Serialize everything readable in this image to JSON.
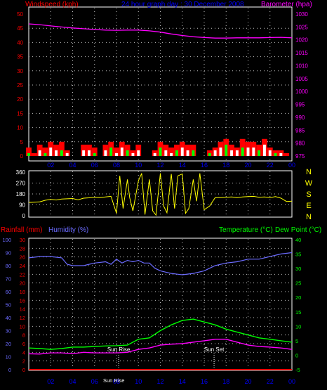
{
  "colors": {
    "background": "#000000",
    "frame": "#ffffff",
    "grid": "#bfbfbf",
    "wind_axis": "#ff0000",
    "gust": "#ff0000",
    "wind": "#ffffff",
    "avg_wind": "#00ff00",
    "barometer": "#ff00ff",
    "title": "#0000ff",
    "direction": "#ffff00",
    "compass": "#ffff00",
    "rain": "#ff0000",
    "humidity": "#6b6bff",
    "temperature": "#00ff00",
    "dewpoint": "#ff00ff",
    "dew_label": "#00ff00",
    "hour_labels": "#0000ff",
    "marker_text": "#ffffff"
  },
  "chart_data": [
    {
      "type": "area",
      "title": "24 hour graph day : 30 December 2008",
      "ylabel_left": "Windspeed (kph)",
      "ylabel_right": "Barometer (hpa)",
      "x_ticks": [
        "02",
        "04",
        "06",
        "08",
        "10",
        "12",
        "14",
        "16",
        "18",
        "20",
        "22",
        "00"
      ],
      "y_left_ticks": [
        "0",
        "5",
        "10",
        "15",
        "20",
        "25",
        "30",
        "35",
        "40",
        "45",
        "50"
      ],
      "y_left_range": [
        0,
        50
      ],
      "y_right_ticks": [
        "975",
        "980",
        "985",
        "990",
        "995",
        "1000",
        "1005",
        "1010",
        "1015",
        "1020",
        "1025",
        "1030"
      ],
      "y_right_range": [
        975,
        1030
      ],
      "grid": true,
      "series": [
        {
          "name": "Barometer (hpa)",
          "x": [
            0,
            1,
            2,
            3,
            4,
            5,
            6,
            7,
            8,
            9,
            10,
            11,
            12,
            13,
            14,
            15,
            16,
            17,
            18,
            19,
            20,
            21,
            22,
            23,
            24
          ],
          "values": [
            1026.2,
            1025.9,
            1025.4,
            1025.0,
            1024.6,
            1024.3,
            1024.0,
            1023.8,
            1023.7,
            1023.8,
            1023.8,
            1023.5,
            1023.0,
            1022.3,
            1021.7,
            1021.2,
            1020.9,
            1020.7,
            1020.7,
            1020.8,
            1020.8,
            1020.8,
            1020.9,
            1021.0,
            1020.8
          ]
        }
      ],
      "gust_series": {
        "x": [
          0,
          0.5,
          1,
          1.5,
          2,
          2.5,
          3,
          3.5,
          4,
          4.5,
          5,
          5.5,
          6,
          6.5,
          7,
          7.5,
          8,
          8.5,
          9,
          9.5,
          10,
          10.5,
          11,
          11.5,
          12,
          12.5,
          13,
          13.5,
          14,
          14.5,
          15,
          15.5,
          16,
          16.5,
          17,
          17.5,
          18,
          18.5,
          19,
          19.5,
          20,
          20.5,
          21,
          21.5,
          22,
          22.5,
          23,
          23.5,
          24
        ],
        "values": [
          3,
          1,
          4,
          3,
          5,
          4,
          5,
          2,
          0,
          0,
          4,
          4,
          3,
          0,
          4,
          5,
          3,
          5,
          4,
          2,
          4,
          0,
          0,
          2,
          5,
          4,
          3,
          4,
          5,
          4,
          4,
          0,
          0,
          2,
          3,
          5,
          6,
          4,
          3,
          6,
          5,
          5,
          4,
          6,
          3,
          2,
          2,
          1,
          0
        ]
      },
      "wind_series": {
        "x": [
          0,
          0.5,
          1,
          1.5,
          2,
          2.5,
          3,
          3.5,
          4,
          4.5,
          5,
          5.5,
          6,
          6.5,
          7,
          7.5,
          8,
          8.5,
          9,
          9.5,
          10,
          10.5,
          11,
          11.5,
          12,
          12.5,
          13,
          13.5,
          14,
          14.5,
          15,
          15.5,
          16,
          16.5,
          17,
          17.5,
          18,
          18.5,
          19,
          19.5,
          20,
          20.5,
          21,
          21.5,
          22,
          22.5,
          23,
          23.5,
          24
        ],
        "values": [
          1,
          0,
          2,
          1,
          3,
          2,
          2,
          1,
          0,
          0,
          2,
          2,
          1,
          0,
          2,
          3,
          1,
          3,
          2,
          1,
          2,
          0,
          0,
          1,
          3,
          2,
          1,
          2,
          3,
          2,
          2,
          0,
          0,
          1,
          2,
          3,
          4,
          2,
          2,
          3,
          3,
          3,
          2,
          4,
          2,
          1,
          1,
          0,
          0
        ]
      }
    },
    {
      "type": "line",
      "ylabel_right": "N W S E N",
      "compass": [
        "N",
        "W",
        "S",
        "E",
        "N"
      ],
      "y_ticks": [
        "0",
        "90",
        "180",
        "270",
        "360"
      ],
      "y_range": [
        0,
        360
      ],
      "grid": true,
      "series": [
        {
          "name": "Wind direction",
          "x": [
            0,
            0.5,
            1,
            1.5,
            2,
            2.5,
            3,
            3.5,
            4,
            4.5,
            5,
            5.5,
            6,
            6.5,
            7,
            7.5,
            8,
            8.3,
            8.6,
            9,
            9.2,
            9.5,
            10,
            10.3,
            10.6,
            11,
            11.3,
            11.6,
            12,
            12.3,
            12.6,
            13,
            13.3,
            13.6,
            14,
            14.3,
            14.6,
            15,
            15.3,
            15.6,
            16,
            16.5,
            17,
            17.5,
            18,
            18.5,
            19,
            19.5,
            20,
            20.5,
            21,
            21.5,
            22,
            22.5,
            23,
            23.5,
            24
          ],
          "values": [
            110,
            112,
            115,
            128,
            135,
            130,
            138,
            140,
            142,
            132,
            145,
            148,
            152,
            150,
            155,
            160,
            20,
            330,
            60,
            300,
            150,
            40,
            290,
            350,
            10,
            300,
            40,
            5,
            350,
            80,
            25,
            345,
            60,
            330,
            345,
            20,
            60,
            300,
            120,
            350,
            50,
            80,
            150,
            150,
            152,
            155,
            150,
            155,
            158,
            160,
            152,
            155,
            150,
            158,
            145,
            118,
            120
          ]
        }
      ]
    },
    {
      "type": "line",
      "ylabel_left_1": "Rainfall (mm)",
      "ylabel_left_2": "Humidity (%)",
      "ylabel_right_1": "Temperature (°C)",
      "ylabel_right_2": "Dew Point (°C)",
      "x_ticks": [
        "02",
        "04",
        "06",
        "08",
        "10",
        "12",
        "14",
        "16",
        "18",
        "20",
        "22",
        "00"
      ],
      "humidity_ticks": [
        "0",
        "10",
        "20",
        "30",
        "40",
        "50",
        "60",
        "70",
        "80",
        "90",
        "100"
      ],
      "humidity_range": [
        0,
        100
      ],
      "rain_ticks": [
        "0",
        "2",
        "4",
        "6",
        "8",
        "10",
        "12",
        "14",
        "16",
        "18",
        "20",
        "22",
        "24",
        "26",
        "28",
        "30"
      ],
      "rain_range": [
        0,
        30
      ],
      "temp_ticks": [
        "-5",
        "0",
        "5",
        "10",
        "15",
        "20",
        "25",
        "30",
        "35",
        "40"
      ],
      "temp_range": [
        -5,
        40
      ],
      "grid": true,
      "markers": [
        {
          "label": "Sun Rise",
          "x": 8.2
        },
        {
          "label": "Sun Set",
          "x": 16.9
        }
      ],
      "bottom_label": "Sun Rise",
      "series": [
        {
          "name": "Humidity (%)",
          "x": [
            0,
            1,
            2,
            3,
            3.5,
            4,
            5,
            6,
            7,
            7.5,
            8,
            8.5,
            9,
            9.5,
            10,
            10.5,
            11,
            11.5,
            12,
            12.5,
            13,
            14,
            15,
            16,
            16.5,
            17,
            18,
            19,
            20,
            21,
            22,
            23,
            24
          ],
          "values": [
            86,
            87,
            87,
            86,
            81,
            80,
            80,
            82,
            83,
            81,
            85,
            82,
            84,
            83,
            84,
            82,
            82,
            78,
            76,
            75,
            74,
            73,
            74,
            76,
            78,
            80,
            82,
            83,
            85,
            85,
            87,
            89,
            90
          ]
        },
        {
          "name": "Temperature (°C)",
          "x": [
            0,
            1,
            2,
            3,
            4,
            5,
            6,
            7,
            8,
            9,
            10,
            11,
            12,
            13,
            14,
            15,
            16,
            17,
            18,
            19,
            20,
            21,
            22,
            23,
            24
          ],
          "values": [
            2.5,
            2.3,
            2.0,
            2.3,
            2.8,
            2.8,
            3.0,
            3.2,
            3.3,
            3.5,
            5.5,
            6.0,
            8.5,
            10.5,
            12.0,
            12.5,
            11.5,
            10.5,
            9.0,
            8.0,
            7.0,
            6.0,
            5.5,
            5.0,
            4.5
          ]
        },
        {
          "name": "Dew Point (°C)",
          "x": [
            0,
            1,
            2,
            3,
            4,
            5,
            6,
            7,
            8,
            9,
            10,
            11,
            12,
            13,
            14,
            15,
            16,
            17,
            18,
            19,
            20,
            21,
            22,
            23,
            24
          ],
          "values": [
            0.5,
            0.4,
            0.8,
            0.8,
            0.5,
            1.0,
            0.8,
            0.8,
            0.8,
            1.0,
            2.0,
            2.5,
            3.5,
            3.8,
            4.0,
            4.5,
            5.0,
            5.5,
            5.5,
            4.5,
            3.5,
            3.0,
            2.8,
            2.5,
            2.0
          ]
        },
        {
          "name": "Rainfall (mm)",
          "x": [
            0,
            24
          ],
          "values": [
            0,
            0
          ]
        }
      ]
    }
  ]
}
